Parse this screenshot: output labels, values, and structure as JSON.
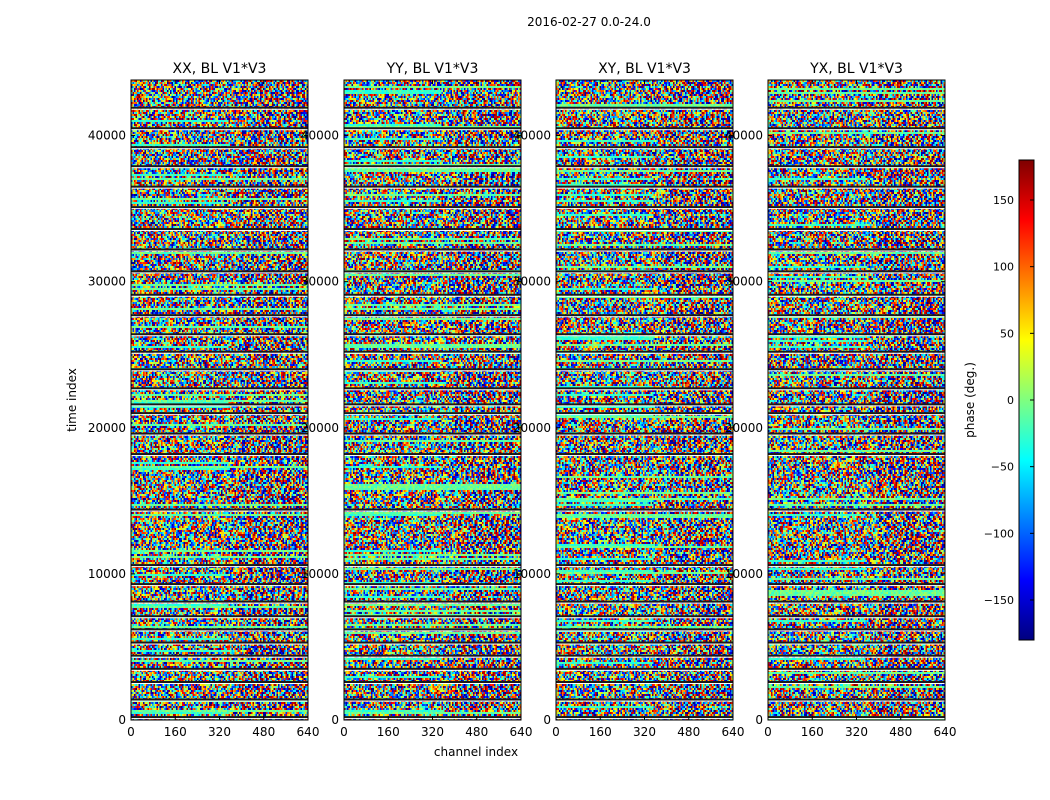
{
  "figure": {
    "suptitle": "2016-02-27 0.0-24.0",
    "xlabel": "channel index",
    "ylabel": "time index"
  },
  "chart_data": {
    "type": "heatmap",
    "colormap": "jet",
    "x_range": [
      0,
      640
    ],
    "y_range": [
      0,
      43800
    ],
    "x_ticks": [
      0,
      160,
      320,
      480,
      640
    ],
    "y_ticks": [
      0,
      10000,
      20000,
      30000,
      40000
    ],
    "panels": [
      {
        "title": "XX, BL V1*V3"
      },
      {
        "title": "YY, BL V1*V3"
      },
      {
        "title": "XY, BL V1*V3"
      },
      {
        "title": "YX, BL V1*V3"
      }
    ],
    "gap_rows_time_index": [
      200,
      1400,
      2600,
      3500,
      4400,
      5300,
      6200,
      7100,
      8100,
      9300,
      10600,
      14400,
      18200,
      19600,
      21000,
      21600,
      22700,
      24000,
      25200,
      26400,
      27700,
      29100,
      30700,
      32200,
      33600,
      35100,
      36500,
      37900,
      39200,
      40500,
      41900
    ],
    "colorbar": {
      "label": "phase (deg.)",
      "range": [
        -180,
        180
      ],
      "ticks": [
        -150,
        -100,
        -50,
        0,
        50,
        100,
        150
      ]
    }
  }
}
